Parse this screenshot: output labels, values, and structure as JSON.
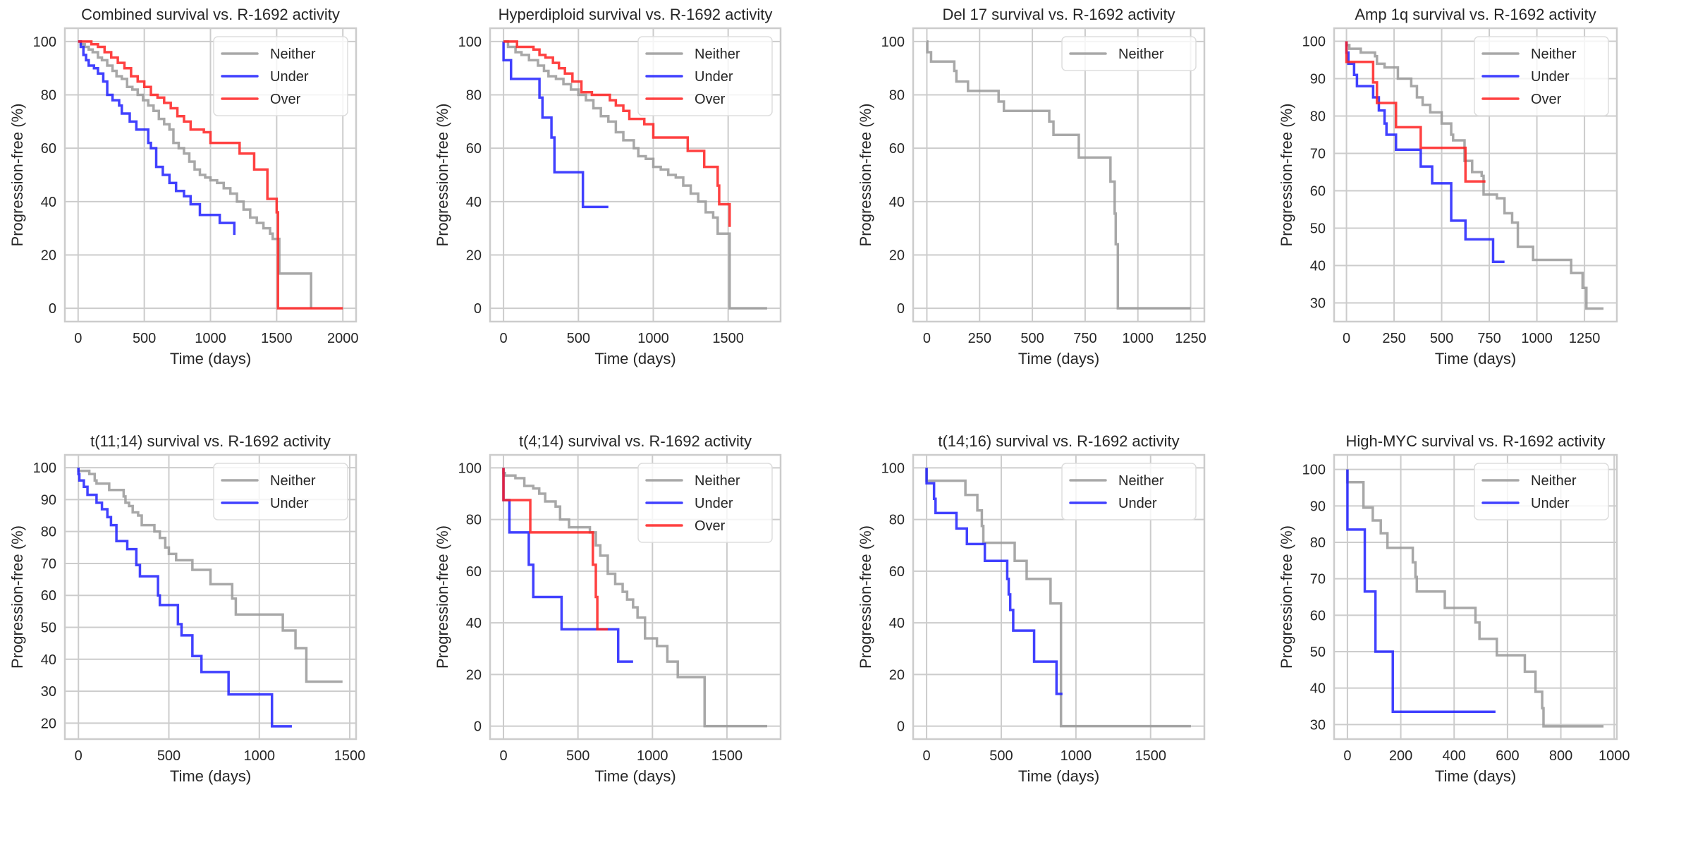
{
  "chart_data": [
    {
      "type": "line",
      "title": "Combined survival vs. R-1692 activity",
      "xlabel": "Time (days)",
      "ylabel": "Progression-free (%)",
      "xlim": [
        -100,
        2100
      ],
      "ylim": [
        -5,
        105
      ],
      "xticks": [
        0,
        500,
        1000,
        1500,
        2000
      ],
      "yticks": [
        0,
        20,
        40,
        60,
        80,
        100
      ],
      "grid": true,
      "legend": "top-right",
      "series": [
        {
          "name": "Neither",
          "color": "#999999",
          "step": true,
          "x": [
            0,
            20,
            50,
            80,
            110,
            150,
            180,
            220,
            260,
            290,
            330,
            370,
            410,
            450,
            490,
            530,
            570,
            610,
            650,
            690,
            720,
            760,
            800,
            840,
            880,
            920,
            960,
            1000,
            1050,
            1100,
            1150,
            1200,
            1250,
            1300,
            1350,
            1400,
            1450,
            1470,
            1520,
            1760
          ],
          "y": [
            100,
            99,
            98,
            97,
            96,
            94,
            93,
            91,
            89,
            87,
            86,
            83,
            82,
            80,
            78,
            76,
            74,
            71,
            69,
            67,
            62,
            60,
            58,
            55,
            52,
            50,
            49,
            48,
            47,
            45,
            43,
            40,
            37,
            34,
            32,
            30,
            28,
            26,
            13,
            0
          ]
        },
        {
          "name": "Under",
          "color": "#2020ff",
          "step": true,
          "x": [
            0,
            20,
            40,
            60,
            80,
            120,
            150,
            190,
            220,
            260,
            310,
            330,
            390,
            440,
            530,
            550,
            590,
            640,
            690,
            740,
            800,
            850,
            920,
            1070,
            1180
          ],
          "y": [
            100,
            98,
            95,
            93,
            91,
            90,
            88,
            85,
            80,
            78,
            76,
            73,
            70,
            67,
            62,
            60,
            53,
            50,
            47,
            44,
            42,
            39,
            35,
            32,
            27.5
          ]
        },
        {
          "name": "Over",
          "color": "#ff2020",
          "step": true,
          "x": [
            0,
            100,
            150,
            200,
            250,
            300,
            350,
            400,
            450,
            500,
            550,
            600,
            650,
            700,
            750,
            800,
            850,
            950,
            1000,
            1220,
            1330,
            1430,
            1500,
            1510,
            2000
          ],
          "y": [
            100,
            99,
            98,
            96,
            94,
            92,
            90,
            87,
            85,
            83,
            80,
            79,
            77,
            75,
            72,
            70,
            67,
            66,
            62,
            58,
            52,
            41,
            36,
            0,
            0
          ]
        }
      ]
    },
    {
      "type": "line",
      "title": "Hyperdiploid survival vs. R-1692 activity",
      "xlabel": "Time (days)",
      "ylabel": "Progression-free (%)",
      "xlim": [
        -90,
        1850
      ],
      "ylim": [
        -5,
        105
      ],
      "xticks": [
        0,
        500,
        1000,
        1500
      ],
      "yticks": [
        0,
        20,
        40,
        60,
        80,
        100
      ],
      "grid": true,
      "legend": "top-right",
      "series": [
        {
          "name": "Neither",
          "color": "#999999",
          "step": true,
          "x": [
            0,
            30,
            80,
            120,
            170,
            230,
            270,
            300,
            350,
            400,
            450,
            500,
            550,
            600,
            650,
            700,
            750,
            800,
            870,
            900,
            950,
            1000,
            1050,
            1100,
            1150,
            1200,
            1250,
            1300,
            1350,
            1400,
            1430,
            1510,
            1760
          ],
          "y": [
            100,
            98,
            96,
            95,
            93,
            91,
            89,
            87,
            86,
            84,
            82,
            80,
            78,
            75,
            72,
            70,
            66,
            63,
            60,
            57,
            56,
            53,
            52,
            50,
            49,
            46,
            43,
            40,
            36,
            34,
            28,
            0,
            0
          ]
        },
        {
          "name": "Under",
          "color": "#2020ff",
          "step": true,
          "x": [
            0,
            50,
            240,
            260,
            320,
            340,
            530,
            700
          ],
          "y": [
            93,
            86,
            79,
            71.5,
            64,
            51,
            38,
            38
          ]
        },
        {
          "name": "Over",
          "color": "#ff2020",
          "step": true,
          "x": [
            0,
            90,
            200,
            240,
            280,
            330,
            370,
            410,
            460,
            520,
            590,
            710,
            750,
            800,
            840,
            940,
            1000,
            1230,
            1340,
            1430,
            1440,
            1510
          ],
          "y": [
            100,
            98,
            97,
            95,
            94,
            92,
            90,
            88,
            85,
            81,
            80,
            78,
            76,
            74,
            71,
            69,
            64,
            59,
            53,
            46,
            39,
            30.5
          ]
        }
      ]
    },
    {
      "type": "line",
      "title": "Del 17 survival vs. R-1692 activity",
      "xlabel": "Time (days)",
      "ylabel": "Progression-free (%)",
      "xlim": [
        -65,
        1315
      ],
      "ylim": [
        -5,
        105
      ],
      "xticks": [
        0,
        250,
        500,
        750,
        1000,
        1250
      ],
      "yticks": [
        0,
        20,
        40,
        60,
        80,
        100
      ],
      "grid": true,
      "legend": "top-right",
      "series": [
        {
          "name": "Neither",
          "color": "#999999",
          "step": true,
          "x": [
            0,
            2,
            20,
            130,
            140,
            195,
            340,
            365,
            580,
            600,
            720,
            870,
            890,
            895,
            905,
            1250
          ],
          "y": [
            100,
            96,
            92.5,
            89,
            85,
            81.5,
            77.5,
            74,
            70,
            65,
            56.5,
            47.5,
            35.5,
            24,
            0,
            0
          ]
        }
      ]
    },
    {
      "type": "line",
      "title": "Amp 1q survival vs. R-1692 activity",
      "xlabel": "Time (days)",
      "ylabel": "Progression-free (%)",
      "xlim": [
        -65,
        1420
      ],
      "ylim": [
        25,
        103.5
      ],
      "xticks": [
        0,
        250,
        500,
        750,
        1000,
        1250
      ],
      "yticks": [
        30,
        40,
        50,
        60,
        70,
        80,
        90,
        100
      ],
      "grid": true,
      "legend": "top-right",
      "series": [
        {
          "name": "Neither",
          "color": "#999999",
          "step": true,
          "x": [
            0,
            15,
            75,
            150,
            160,
            200,
            270,
            340,
            370,
            400,
            440,
            500,
            550,
            560,
            620,
            660,
            710,
            720,
            790,
            830,
            870,
            900,
            980,
            1180,
            1240,
            1260,
            1350
          ],
          "y": [
            99,
            98,
            97,
            96,
            94,
            93,
            90,
            88,
            85,
            83,
            81,
            78,
            75,
            73.5,
            68,
            65,
            64,
            59,
            58,
            54,
            51.5,
            45,
            41.5,
            38,
            34,
            28.5,
            28.5
          ]
        },
        {
          "name": "Under",
          "color": "#2020ff",
          "step": true,
          "x": [
            0,
            10,
            40,
            55,
            140,
            170,
            200,
            210,
            260,
            390,
            450,
            550,
            625,
            770,
            830
          ],
          "y": [
            97,
            94,
            91,
            88,
            85,
            81.5,
            78,
            75,
            71,
            66.5,
            62,
            52,
            47,
            41,
            41
          ]
        },
        {
          "name": "Over",
          "color": "#ff2020",
          "step": true,
          "x": [
            0,
            140,
            160,
            260,
            390,
            625,
            730
          ],
          "y": [
            94.5,
            89,
            83.5,
            77,
            71.5,
            62.5,
            62.5
          ]
        }
      ]
    },
    {
      "type": "line",
      "title": "t(11;14) survival vs. R-1692 activity",
      "xlabel": "Time (days)",
      "ylabel": "Progression-free (%)",
      "xlim": [
        -75,
        1535
      ],
      "ylim": [
        15,
        104
      ],
      "xticks": [
        0,
        500,
        1000,
        1500
      ],
      "yticks": [
        20,
        30,
        40,
        50,
        60,
        70,
        80,
        90,
        100
      ],
      "grid": true,
      "legend": "top-right",
      "series": [
        {
          "name": "Neither",
          "color": "#999999",
          "step": true,
          "x": [
            0,
            60,
            90,
            100,
            170,
            250,
            260,
            280,
            300,
            330,
            350,
            420,
            450,
            480,
            500,
            540,
            630,
            730,
            850,
            870,
            1130,
            1200,
            1260,
            1460
          ],
          "y": [
            99,
            98,
            96,
            95,
            93,
            91,
            89,
            88,
            86,
            85,
            82,
            80,
            78,
            75,
            73,
            71,
            68,
            63.5,
            59,
            54,
            49,
            43.5,
            33,
            33
          ]
        },
        {
          "name": "Under",
          "color": "#2020ff",
          "step": true,
          "x": [
            0,
            5,
            30,
            50,
            100,
            130,
            160,
            180,
            210,
            270,
            320,
            340,
            440,
            450,
            550,
            570,
            630,
            680,
            830,
            1070,
            1180
          ],
          "y": [
            98,
            96,
            94,
            91.5,
            89,
            87,
            84.5,
            82,
            77,
            74.5,
            69.5,
            66,
            60,
            57,
            51,
            47.5,
            41,
            36,
            29,
            19,
            19
          ]
        }
      ]
    },
    {
      "type": "line",
      "title": "t(4;14) survival vs. R-1692 activity",
      "xlabel": "Time (days)",
      "ylabel": "Progression-free (%)",
      "xlim": [
        -90,
        1860
      ],
      "ylim": [
        -5,
        105
      ],
      "xticks": [
        0,
        500,
        1000,
        1500
      ],
      "yticks": [
        0,
        20,
        40,
        60,
        80,
        100
      ],
      "grid": true,
      "legend": "top-right",
      "series": [
        {
          "name": "Neither",
          "color": "#999999",
          "step": true,
          "x": [
            0,
            10,
            80,
            140,
            200,
            240,
            280,
            350,
            380,
            440,
            580,
            620,
            650,
            700,
            750,
            800,
            830,
            870,
            900,
            950,
            1030,
            1100,
            1170,
            1350,
            1770
          ],
          "y": [
            98,
            97,
            96,
            93,
            92,
            90,
            87,
            85,
            80,
            77,
            75,
            70,
            66,
            59,
            55,
            52,
            49,
            46,
            42,
            34,
            31,
            25,
            19,
            0,
            0
          ]
        },
        {
          "name": "Under",
          "color": "#2020ff",
          "step": true,
          "x": [
            0,
            40,
            170,
            200,
            390,
            770,
            870
          ],
          "y": [
            87.5,
            75,
            62.5,
            50,
            37.5,
            25,
            25
          ]
        },
        {
          "name": "Over",
          "color": "#ff2020",
          "step": true,
          "x": [
            0,
            180,
            600,
            620,
            630,
            700
          ],
          "y": [
            87.5,
            75,
            62.5,
            50,
            37.5,
            37.5
          ]
        }
      ]
    },
    {
      "type": "line",
      "title": "t(14;16) survival vs. R-1692 activity",
      "xlabel": "Time (days)",
      "ylabel": "Progression-free (%)",
      "xlim": [
        -90,
        1860
      ],
      "ylim": [
        -5,
        105
      ],
      "xticks": [
        0,
        500,
        1000,
        1500
      ],
      "yticks": [
        0,
        20,
        40,
        60,
        80,
        100
      ],
      "grid": true,
      "legend": "top-right",
      "series": [
        {
          "name": "Neither",
          "color": "#999999",
          "step": true,
          "x": [
            0,
            260,
            340,
            370,
            380,
            590,
            670,
            830,
            900,
            1770
          ],
          "y": [
            95,
            89.5,
            83.5,
            77.5,
            71,
            64,
            57,
            47.5,
            0,
            0
          ]
        },
        {
          "name": "Under",
          "color": "#2020ff",
          "step": true,
          "x": [
            0,
            50,
            60,
            200,
            270,
            390,
            540,
            550,
            560,
            580,
            720,
            870,
            910
          ],
          "y": [
            94,
            88,
            82.5,
            76.5,
            70.5,
            64,
            57,
            51,
            45,
            37,
            25,
            12.5,
            12.5
          ]
        }
      ]
    },
    {
      "type": "line",
      "title": "High-MYC survival vs. R-1692 activity",
      "xlabel": "Time (days)",
      "ylabel": "Progression-free (%)",
      "xlim": [
        -50,
        1010
      ],
      "ylim": [
        26,
        104
      ],
      "xticks": [
        0,
        200,
        400,
        600,
        800,
        1000
      ],
      "yticks": [
        30,
        40,
        50,
        60,
        70,
        80,
        90,
        100
      ],
      "grid": true,
      "legend": "top-right",
      "series": [
        {
          "name": "Neither",
          "color": "#999999",
          "step": true,
          "x": [
            0,
            60,
            95,
            125,
            150,
            245,
            255,
            260,
            365,
            480,
            495,
            560,
            665,
            705,
            730,
            735,
            960
          ],
          "y": [
            96.5,
            89.5,
            86,
            82.5,
            78.5,
            74.5,
            70.5,
            66.5,
            62,
            58,
            53.5,
            49,
            44.5,
            39,
            34.5,
            29.5,
            29.5
          ]
        },
        {
          "name": "Under",
          "color": "#2020ff",
          "step": true,
          "x": [
            0,
            65,
            105,
            170,
            555
          ],
          "y": [
            83.5,
            66.5,
            50,
            33.5,
            33.5
          ]
        }
      ]
    }
  ]
}
